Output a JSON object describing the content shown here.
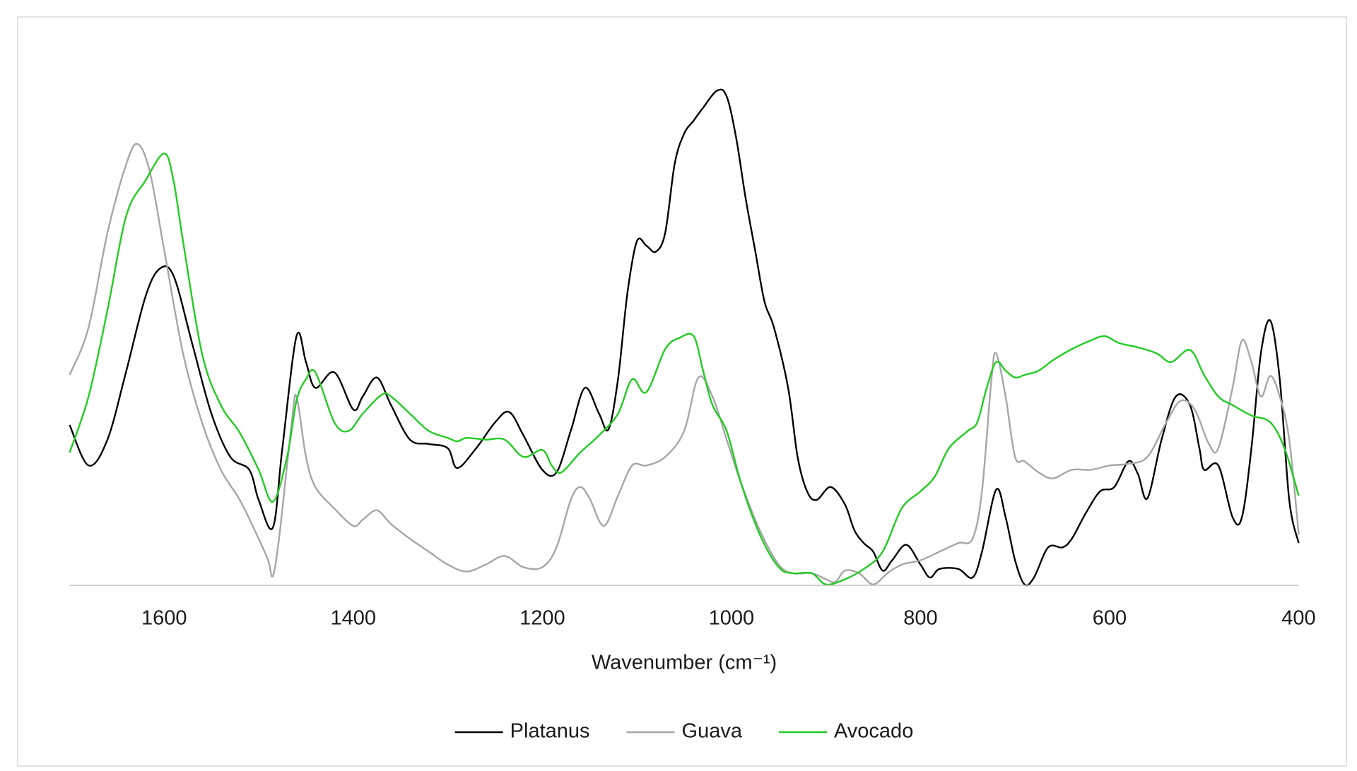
{
  "chart_data": {
    "type": "line",
    "x_label": "Wavenumber (cm⁻¹)",
    "xlim": [
      1700,
      400
    ],
    "xticks": [
      1600,
      1400,
      1200,
      1000,
      800,
      600,
      400
    ],
    "ylim": [
      0,
      620
    ],
    "legend": "bottom",
    "series": [
      {
        "name": "Platanus",
        "color": "#000000",
        "x": [
          1700,
          1680,
          1660,
          1640,
          1620,
          1605,
          1590,
          1570,
          1550,
          1530,
          1510,
          1500,
          1485,
          1475,
          1460,
          1450,
          1440,
          1420,
          1400,
          1390,
          1375,
          1360,
          1340,
          1320,
          1300,
          1290,
          1270,
          1250,
          1235,
          1220,
          1200,
          1185,
          1170,
          1155,
          1140,
          1130,
          1120,
          1110,
          1100,
          1090,
          1080,
          1070,
          1060,
          1050,
          1040,
          1030,
          1015,
          1005,
          995,
          985,
          975,
          965,
          955,
          940,
          930,
          920,
          910,
          895,
          880,
          870,
          860,
          850,
          840,
          830,
          815,
          800,
          790,
          780,
          760,
          745,
          735,
          720,
          710,
          700,
          690,
          680,
          665,
          650,
          640,
          625,
          610,
          595,
          580,
          570,
          560,
          545,
          530,
          515,
          505,
          500,
          485,
          470,
          460,
          450,
          440,
          430,
          420,
          410,
          400
        ],
        "values": [
          186,
          139,
          169,
          249,
          334,
          367,
          359,
          279,
          199,
          149,
          134,
          99,
          67,
          159,
          289,
          259,
          229,
          247,
          204,
          219,
          241,
          209,
          169,
          164,
          159,
          136,
          159,
          189,
          201,
          174,
          134,
          131,
          179,
          229,
          199,
          181,
          239,
          339,
          399,
          394,
          387,
          409,
          489,
          524,
          539,
          554,
          574,
          567,
          519,
          449,
          389,
          329,
          299,
          229,
          149,
          109,
          99,
          114,
          94,
          64,
          49,
          39,
          17,
          29,
          47,
          24,
          9,
          19,
          19,
          9,
          39,
          111,
          79,
          29,
          1,
          9,
          44,
          44,
          54,
          84,
          109,
          114,
          144,
          129,
          101,
          169,
          219,
          209,
          159,
          134,
          139,
          79,
          79,
          159,
          269,
          307,
          239,
          99,
          49
        ]
      },
      {
        "name": "Guava",
        "color": "#a6a6a6",
        "x": [
          1700,
          1680,
          1660,
          1640,
          1628,
          1615,
          1600,
          1580,
          1560,
          1540,
          1520,
          1500,
          1490,
          1485,
          1478,
          1465,
          1460,
          1450,
          1440,
          1420,
          1400,
          1390,
          1375,
          1360,
          1340,
          1320,
          1300,
          1280,
          1260,
          1240,
          1220,
          1200,
          1185,
          1170,
          1160,
          1150,
          1135,
          1120,
          1105,
          1090,
          1070,
          1050,
          1035,
          1020,
          1005,
          990,
          970,
          950,
          935,
          915,
          900,
          890,
          880,
          865,
          850,
          835,
          820,
          800,
          780,
          760,
          745,
          735,
          725,
          720,
          710,
          700,
          690,
          675,
          660,
          640,
          620,
          600,
          580,
          560,
          540,
          525,
          510,
          495,
          485,
          470,
          460,
          450,
          440,
          430,
          420,
          410,
          400
        ],
        "values": [
          244,
          299,
          409,
          489,
          512,
          479,
          389,
          269,
          189,
          134,
          99,
          54,
          29,
          11,
          59,
          189,
          219,
          149,
          114,
          89,
          69,
          76,
          87,
          71,
          54,
          39,
          24,
          16,
          24,
          34,
          21,
          21,
          44,
          99,
          114,
          101,
          69,
          104,
          139,
          139,
          149,
          179,
          241,
          219,
          169,
          119,
          64,
          24,
          14,
          14,
          7,
          4,
          17,
          14,
          1,
          14,
          24,
          29,
          39,
          49,
          54,
          109,
          239,
          269,
          219,
          149,
          144,
          131,
          124,
          134,
          134,
          139,
          141,
          149,
          189,
          214,
          204,
          164,
          159,
          229,
          284,
          259,
          219,
          243,
          219,
          169,
          59
        ]
      },
      {
        "name": "Avocado",
        "color": "#22cc22",
        "x": [
          1700,
          1680,
          1660,
          1640,
          1620,
          1600,
          1590,
          1580,
          1560,
          1540,
          1520,
          1500,
          1485,
          1470,
          1460,
          1450,
          1440,
          1420,
          1405,
          1390,
          1370,
          1360,
          1340,
          1320,
          1300,
          1290,
          1280,
          1260,
          1240,
          1220,
          1200,
          1190,
          1180,
          1160,
          1140,
          1120,
          1105,
          1090,
          1070,
          1055,
          1040,
          1030,
          1020,
          1005,
          990,
          970,
          950,
          935,
          915,
          900,
          880,
          860,
          840,
          820,
          800,
          785,
          770,
          750,
          740,
          730,
          720,
          710,
          700,
          690,
          675,
          660,
          640,
          620,
          605,
          590,
          570,
          550,
          535,
          515,
          500,
          485,
          470,
          450,
          430,
          415,
          400
        ],
        "values": [
          154,
          219,
          319,
          429,
          469,
          501,
          469,
          399,
          269,
          209,
          177,
          134,
          97,
          149,
          214,
          239,
          247,
          189,
          179,
          199,
          221,
          219,
          199,
          179,
          171,
          167,
          171,
          169,
          169,
          149,
          157,
          139,
          131,
          154,
          174,
          199,
          239,
          224,
          274,
          287,
          289,
          249,
          209,
          179,
          119,
          59,
          21,
          14,
          14,
          1,
          7,
          19,
          39,
          89,
          109,
          126,
          159,
          179,
          189,
          229,
          259,
          249,
          241,
          244,
          249,
          261,
          274,
          284,
          289,
          281,
          276,
          269,
          259,
          273,
          244,
          219,
          209,
          197,
          189,
          159,
          104
        ]
      }
    ]
  }
}
